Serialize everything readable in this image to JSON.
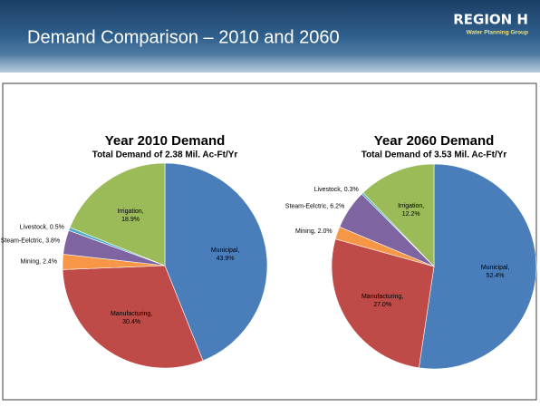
{
  "header": {
    "title": "Demand Comparison – 2010 and 2060",
    "logo": {
      "name": "REGION H",
      "tagline": "Water Planning Group"
    }
  },
  "chart_data": [
    {
      "type": "pie",
      "title": "Year 2010 Demand",
      "subtitle": "Total Demand of 2.38 Mil. Ac-Ft/Yr",
      "categories": [
        "Municipal,",
        "Manufacturing,",
        "Mining,",
        "Steam-Eelctric,",
        "Livestock,",
        "Irrigation,"
      ],
      "values": [
        43.9,
        30.4,
        2.4,
        3.8,
        0.5,
        18.9
      ],
      "value_labels": [
        "43.9%",
        "30.4%",
        "2.4%",
        "3.8%",
        "0.5%",
        "18.9%"
      ],
      "colors": [
        "#4a7ebb",
        "#be4b48",
        "#f79646",
        "#7f64a2",
        "#4bacc6",
        "#9bbb59"
      ]
    },
    {
      "type": "pie",
      "title": "Year 2060 Demand",
      "subtitle": "Total Demand of 3.53 Mil. Ac-Ft/Yr",
      "categories": [
        "Municipal,",
        "Manufacturing,",
        "Mining,",
        "Steam-Eelctric,",
        "Livestock,",
        "Irrigation,"
      ],
      "values": [
        52.4,
        27.0,
        2.0,
        6.2,
        0.3,
        12.2
      ],
      "value_labels": [
        "52.4%",
        "27.0%",
        "2.0%",
        "6.2%",
        "0.3%",
        "12.2%"
      ],
      "colors": [
        "#4a7ebb",
        "#be4b48",
        "#f79646",
        "#7f64a2",
        "#4bacc6",
        "#9bbb59"
      ]
    }
  ]
}
